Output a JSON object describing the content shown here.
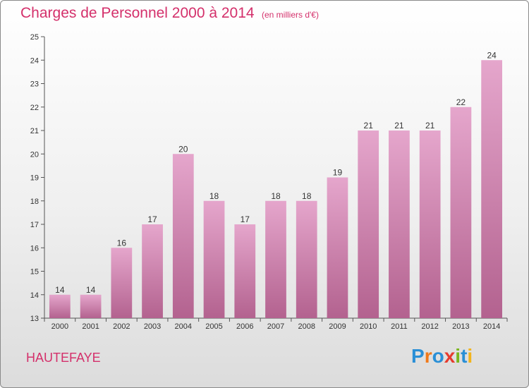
{
  "commune": "HAUTEFAYE",
  "logo": {
    "text": "Proxiti",
    "letter_colors": [
      "#2a8fd6",
      "#f07a1a",
      "#2a8fd6",
      "#e63b2e",
      "#7ab51d",
      "#2a8fd6",
      "#f2b41c"
    ]
  },
  "colors": {
    "title": "#d4306b",
    "bar_top": "#e5a6cc",
    "bar_bottom": "#b3628f",
    "axis": "#555555",
    "grid": "#cfcfcf"
  },
  "chart_data": {
    "type": "bar",
    "title": "Charges de Personnel 2000 à 2014",
    "subtitle": "(en milliers d'€)",
    "categories": [
      "2000",
      "2001",
      "2002",
      "2003",
      "2004",
      "2005",
      "2006",
      "2007",
      "2008",
      "2009",
      "2010",
      "2011",
      "2012",
      "2013",
      "2014"
    ],
    "values": [
      14,
      14,
      16,
      17,
      20,
      18,
      17,
      18,
      18,
      19,
      21,
      21,
      21,
      22,
      24
    ],
    "xlabel": "",
    "ylabel": "",
    "ylim": [
      13,
      25
    ],
    "yticks": [
      13,
      14,
      15,
      16,
      17,
      18,
      19,
      20,
      21,
      22,
      23,
      24,
      25
    ],
    "grid": false,
    "data_labels": true
  }
}
